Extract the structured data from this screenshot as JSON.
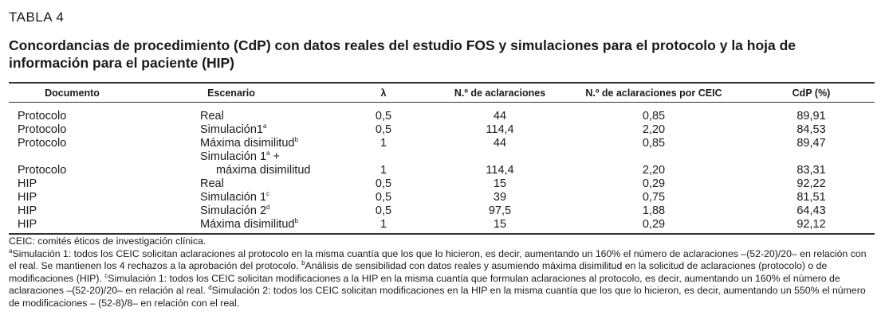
{
  "table_label": "TABLA 4",
  "title": "Concordancias de procedimiento (CdP) con datos reales del estudio FOS y simulaciones para el protocolo y la hoja de información para el paciente (HIP)",
  "table": {
    "headers": [
      "Documento",
      "Escenario",
      "λ",
      "N.º de aclaraciones",
      "N.º de aclaraciones por CEIC",
      "CdP (%)"
    ],
    "rows": [
      {
        "doc": "Protocolo",
        "esc": "Real",
        "sup": "",
        "esc2": "",
        "lambda": "0,5",
        "acl": "44",
        "acl_ceic": "0,85",
        "cdp": "89,91"
      },
      {
        "doc": "Protocolo",
        "esc": "Simulación1",
        "sup": "a",
        "esc2": "",
        "lambda": "0,5",
        "acl": "114,4",
        "acl_ceic": "2,20",
        "cdp": "84,53"
      },
      {
        "doc": "Protocolo",
        "esc": "Máxima disimilitud",
        "sup": "b",
        "esc2": "",
        "lambda": "1",
        "acl": "44",
        "acl_ceic": "0,85",
        "cdp": "89,47"
      },
      {
        "doc": "Protocolo",
        "esc": "Simulación 1",
        "sup": "a",
        "esc_tail": " +",
        "esc2": "máxima disimilitud",
        "lambda": "1",
        "acl": "114,4",
        "acl_ceic": "2,20",
        "cdp": "83,31"
      },
      {
        "doc": "HIP",
        "esc": "Real",
        "sup": "",
        "esc2": "",
        "lambda": "0,5",
        "acl": "15",
        "acl_ceic": "0,29",
        "cdp": "92,22"
      },
      {
        "doc": "HIP",
        "esc": "Simulación 1",
        "sup": "c",
        "esc2": "",
        "lambda": "0,5",
        "acl": "39",
        "acl_ceic": "0,75",
        "cdp": "81,51"
      },
      {
        "doc": "HIP",
        "esc": "Simulación 2",
        "sup": "d",
        "esc2": "",
        "lambda": "0,5",
        "acl": "97,5",
        "acl_ceic": "1,88",
        "cdp": "64,43"
      },
      {
        "doc": "HIP",
        "esc": "Máxima disimilitud",
        "sup": "b",
        "esc2": "",
        "lambda": "1",
        "acl": "15",
        "acl_ceic": "0,29",
        "cdp": "92,12"
      }
    ]
  },
  "footnotes": {
    "ceic": "CEIC: comités éticos de investigación clínica.",
    "a_mark": "a",
    "a": "Simulación 1: todos los CEIC solicitan aclaraciones al protocolo en la misma cuantía que los que lo hicieron, es decir, aumentando un 160% el número de aclaraciones –(52-20)/20– en relación con el real. Se mantienen los 4 rechazos a la aprobación del protocolo. ",
    "b_mark": "b",
    "b": "Análisis de sensibilidad con datos reales y asumiendo máxima disimilitud en la solicitud de aclaraciones (protocolo) o de modificaciones (HIP). ",
    "c_mark": "c",
    "c": "Simulación 1: todos los CEIC solicitan modificaciones a la HIP en la misma cuantía que formulan aclaraciones al protocolo, es decir, aumentando un 160% el número de aclaraciones –(52-20)/20– en relación al real. ",
    "d_mark": "d",
    "d": "Simulación 2: todos los CEIC solicitan modificaciones en la HIP en la misma cuantía que los que lo hicieron, es decir, aumentando un 550% el número de modificaciones – (52-8)/8– en relación con el real."
  }
}
